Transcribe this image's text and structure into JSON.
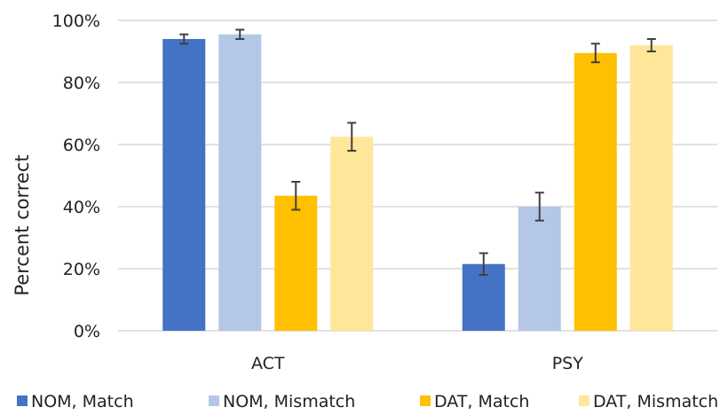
{
  "chart_data": {
    "type": "bar",
    "categories": [
      "ACT",
      "PSY"
    ],
    "series": [
      {
        "name": "NOM, Match",
        "color": "#4472c4",
        "values": [
          94,
          21.5
        ],
        "error": [
          1.5,
          3.5
        ]
      },
      {
        "name": "NOM, Mismatch",
        "color": "#b4c7e7",
        "values": [
          95.5,
          40
        ],
        "error": [
          1.5,
          4.5
        ]
      },
      {
        "name": "DAT, Match",
        "color": "#ffc000",
        "values": [
          43.5,
          89.5
        ],
        "error": [
          4.5,
          3
        ]
      },
      {
        "name": "DAT, Mismatch",
        "color": "#ffe699",
        "values": [
          62.5,
          92
        ],
        "error": [
          4.5,
          2
        ]
      }
    ],
    "yticks": [
      "0%",
      "20%",
      "40%",
      "60%",
      "80%",
      "100%"
    ],
    "ytick_values": [
      0,
      20,
      40,
      60,
      80,
      100
    ],
    "ylim": [
      0,
      100
    ],
    "ylabel": "Percent correct",
    "xlabel": "",
    "title": "",
    "grid": true,
    "legend_position": "bottom"
  }
}
